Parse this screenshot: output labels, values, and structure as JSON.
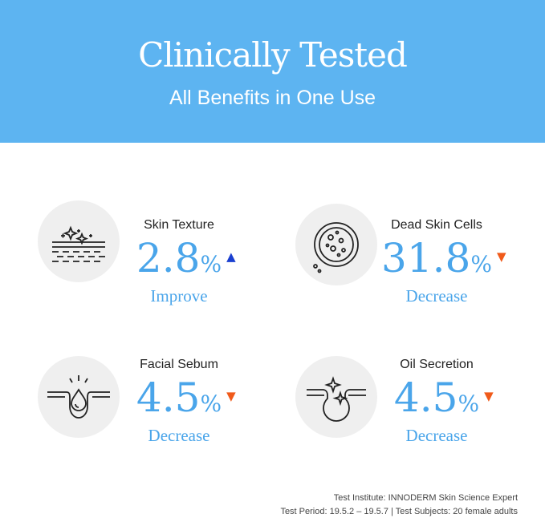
{
  "header": {
    "title": "Clinically Tested",
    "subtitle": "All Benefits in One Use"
  },
  "stats": [
    {
      "label": "Skin Texture",
      "value": "2.8",
      "unit": "%",
      "change": "Improve",
      "direction": "up",
      "icon": "skin-texture-icon"
    },
    {
      "label": "Dead Skin Cells",
      "value": "31.8",
      "unit": "%",
      "change": "Decrease",
      "direction": "down",
      "icon": "dead-skin-cells-icon"
    },
    {
      "label": "Facial Sebum",
      "value": "4.5",
      "unit": "%",
      "change": "Decrease",
      "direction": "down",
      "icon": "sebum-drop-icon"
    },
    {
      "label": "Oil Secretion",
      "value": "4.5",
      "unit": "%",
      "change": "Decrease",
      "direction": "down",
      "icon": "oil-pore-icon"
    }
  ],
  "arrows": {
    "up": "▲",
    "down": "▼"
  },
  "colors": {
    "header": "#5db4f1",
    "value": "#4aa5ea",
    "up": "#1a3fd0",
    "down": "#f05a1a"
  },
  "footer": {
    "line1": "Test Institute: INNODERM Skin Science Expert",
    "line2": "Test Period: 19.5.2 – 19.5.7 | Test Subjects: 20 female adults"
  }
}
